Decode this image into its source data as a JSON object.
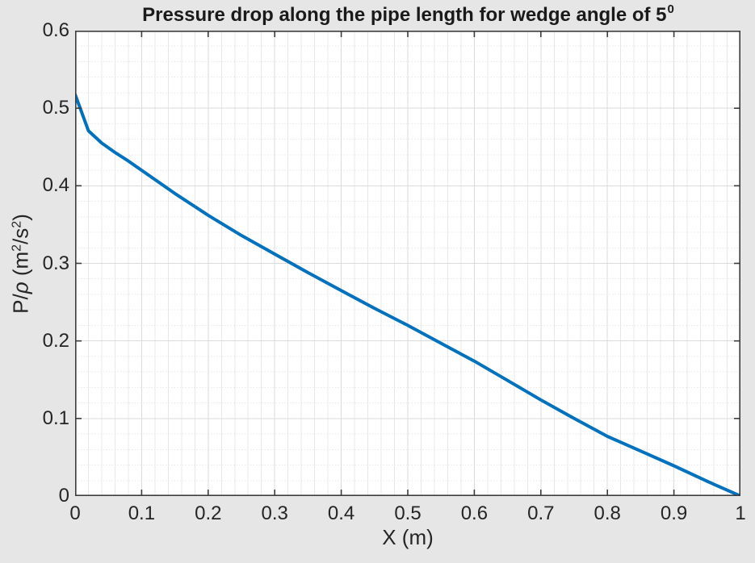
{
  "figure": {
    "background_color": "#E6E6E6",
    "plot_background_color": "#FFFFFF",
    "axis_color": "#3C3C3C",
    "text_color": "#252525",
    "major_grid_color": "#DBDBDB",
    "minor_grid_color": "#E8E8E8"
  },
  "chart_data": {
    "type": "line",
    "title": "Pressure drop along the pipe length for wedge angle of 5",
    "title_superscript": "0",
    "xlabel": "X (m)",
    "ylabel_parts": {
      "p1": "P/",
      "rho": "ρ",
      "p2": " (m",
      "sup1": "2",
      "p3": "/s",
      "sup2": "2",
      "p4": ")"
    },
    "xlim": [
      0,
      1
    ],
    "ylim": [
      0,
      0.6
    ],
    "x_ticks": [
      0,
      0.1,
      0.2,
      0.3,
      0.4,
      0.5,
      0.6,
      0.7,
      0.8,
      0.9,
      1
    ],
    "x_tick_labels": [
      "0",
      "0.1",
      "0.2",
      "0.3",
      "0.4",
      "0.5",
      "0.6",
      "0.7",
      "0.8",
      "0.9",
      "1"
    ],
    "y_ticks": [
      0,
      0.1,
      0.2,
      0.3,
      0.4,
      0.5,
      0.6
    ],
    "y_tick_labels": [
      "0",
      "0.1",
      "0.2",
      "0.3",
      "0.4",
      "0.5",
      "0.6"
    ],
    "x_major_step": 0.1,
    "y_major_step": 0.1,
    "x_minor_step": 0.02,
    "y_minor_step": 0.02,
    "grid": "on",
    "minor_grid": "on",
    "legend": "none",
    "series": [
      {
        "name": "pressure-drop-curve",
        "color": "#0072BD",
        "width": 4,
        "x": [
          0,
          0.02,
          0.04,
          0.06,
          0.08,
          0.1,
          0.15,
          0.2,
          0.25,
          0.3,
          0.35,
          0.4,
          0.45,
          0.5,
          0.55,
          0.6,
          0.65,
          0.7,
          0.75,
          0.8,
          0.85,
          0.9,
          0.95,
          1.0
        ],
        "y": [
          0.518,
          0.471,
          0.455,
          0.443,
          0.432,
          0.42,
          0.39,
          0.362,
          0.336,
          0.312,
          0.288,
          0.265,
          0.242,
          0.22,
          0.197,
          0.174,
          0.149,
          0.124,
          0.1,
          0.077,
          0.058,
          0.039,
          0.019,
          0.0
        ]
      }
    ]
  }
}
